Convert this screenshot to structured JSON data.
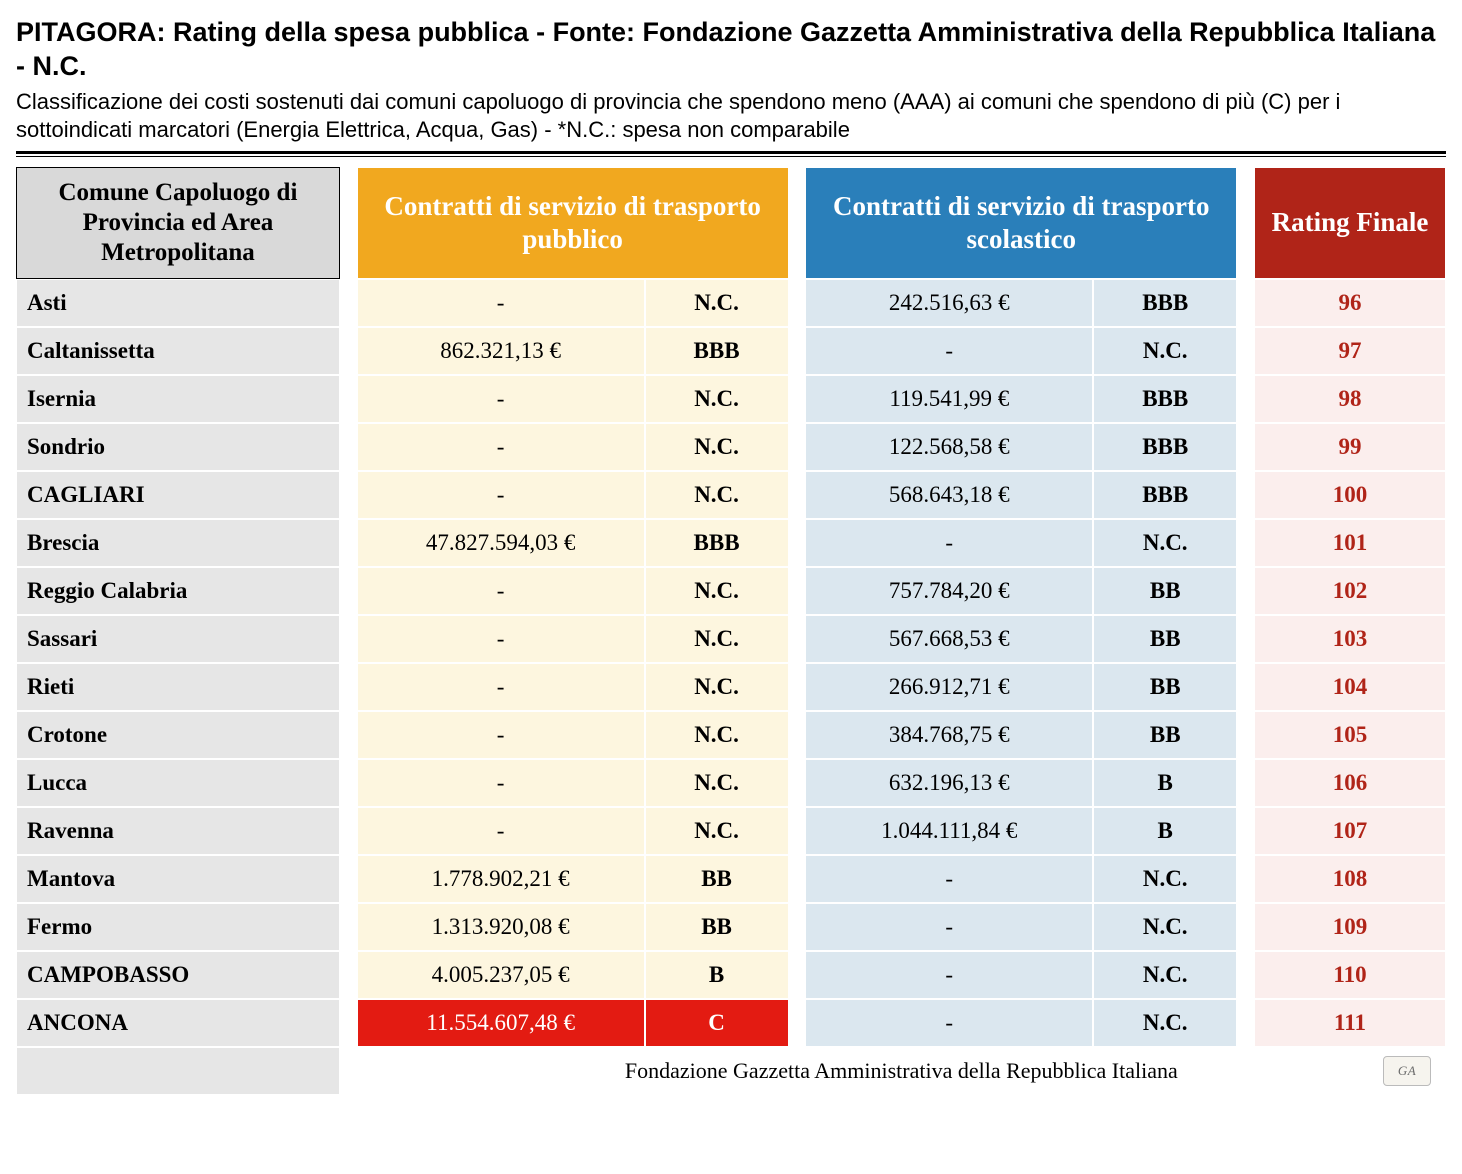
{
  "header": {
    "title": "PITAGORA: Rating della spesa pubblica - Fonte: Fondazione Gazzetta Amministrativa della Repubblica Italiana - N.C.",
    "subtitle": "Classificazione dei costi sostenuti dai comuni capoluogo di provincia che spendono meno (AAA) ai comuni che spendono di più (C) per i sottoindicati marcatori (Energia Elettrica, Acqua, Gas) - *N.C.: spesa non comparabile"
  },
  "table": {
    "columns": {
      "name": "Comune Capoluogo di Provincia ed Area Metropolitana",
      "public_transport": "Contratti di servizio di trasporto pubblico",
      "school_transport": "Contratti di servizio di trasporto scolastico",
      "final_rating": "Rating Finale"
    },
    "colors": {
      "name_header_bg": "#d9d9d9",
      "public_header_bg": "#f1a81f",
      "school_header_bg": "#2a7fba",
      "final_header_bg": "#b02418",
      "name_cell_bg": "#e6e6e6",
      "public_cell_bg": "#fdf6df",
      "school_cell_bg": "#dbe7ef",
      "final_cell_bg": "#fbeeed",
      "final_text_color": "#b02418",
      "highlight_bg": "#e31b12",
      "highlight_text": "#ffffff"
    },
    "rows": [
      {
        "name": "Asti",
        "pub_val": "-",
        "pub_rating": "N.C.",
        "sch_val": "242.516,63 €",
        "sch_rating": "BBB",
        "final": "96",
        "pub_highlight": false
      },
      {
        "name": "Caltanissetta",
        "pub_val": "862.321,13 €",
        "pub_rating": "BBB",
        "sch_val": "-",
        "sch_rating": "N.C.",
        "final": "97",
        "pub_highlight": false
      },
      {
        "name": "Isernia",
        "pub_val": "-",
        "pub_rating": "N.C.",
        "sch_val": "119.541,99 €",
        "sch_rating": "BBB",
        "final": "98",
        "pub_highlight": false
      },
      {
        "name": "Sondrio",
        "pub_val": "-",
        "pub_rating": "N.C.",
        "sch_val": "122.568,58 €",
        "sch_rating": "BBB",
        "final": "99",
        "pub_highlight": false
      },
      {
        "name": "CAGLIARI",
        "pub_val": "-",
        "pub_rating": "N.C.",
        "sch_val": "568.643,18 €",
        "sch_rating": "BBB",
        "final": "100",
        "pub_highlight": false
      },
      {
        "name": "Brescia",
        "pub_val": "47.827.594,03 €",
        "pub_rating": "BBB",
        "sch_val": "-",
        "sch_rating": "N.C.",
        "final": "101",
        "pub_highlight": false
      },
      {
        "name": "Reggio Calabria",
        "pub_val": "-",
        "pub_rating": "N.C.",
        "sch_val": "757.784,20 €",
        "sch_rating": "BB",
        "final": "102",
        "pub_highlight": false
      },
      {
        "name": "Sassari",
        "pub_val": "-",
        "pub_rating": "N.C.",
        "sch_val": "567.668,53 €",
        "sch_rating": "BB",
        "final": "103",
        "pub_highlight": false
      },
      {
        "name": "Rieti",
        "pub_val": "-",
        "pub_rating": "N.C.",
        "sch_val": "266.912,71 €",
        "sch_rating": "BB",
        "final": "104",
        "pub_highlight": false
      },
      {
        "name": "Crotone",
        "pub_val": "-",
        "pub_rating": "N.C.",
        "sch_val": "384.768,75 €",
        "sch_rating": "BB",
        "final": "105",
        "pub_highlight": false
      },
      {
        "name": "Lucca",
        "pub_val": "-",
        "pub_rating": "N.C.",
        "sch_val": "632.196,13 €",
        "sch_rating": "B",
        "final": "106",
        "pub_highlight": false
      },
      {
        "name": "Ravenna",
        "pub_val": "-",
        "pub_rating": "N.C.",
        "sch_val": "1.044.111,84 €",
        "sch_rating": "B",
        "final": "107",
        "pub_highlight": false
      },
      {
        "name": "Mantova",
        "pub_val": "1.778.902,21 €",
        "pub_rating": "BB",
        "sch_val": "-",
        "sch_rating": "N.C.",
        "final": "108",
        "pub_highlight": false
      },
      {
        "name": "Fermo",
        "pub_val": "1.313.920,08 €",
        "pub_rating": "BB",
        "sch_val": "-",
        "sch_rating": "N.C.",
        "final": "109",
        "pub_highlight": false
      },
      {
        "name": "CAMPOBASSO",
        "pub_val": "4.005.237,05 €",
        "pub_rating": "B",
        "sch_val": "-",
        "sch_rating": "N.C.",
        "final": "110",
        "pub_highlight": false
      },
      {
        "name": "ANCONA",
        "pub_val": "11.554.607,48 €",
        "pub_rating": "C",
        "sch_val": "-",
        "sch_rating": "N.C.",
        "final": "111",
        "pub_highlight": true
      }
    ]
  },
  "footer": {
    "caption": "Fondazione Gazzetta Amministrativa della Repubblica Italiana",
    "badge": "GA"
  }
}
